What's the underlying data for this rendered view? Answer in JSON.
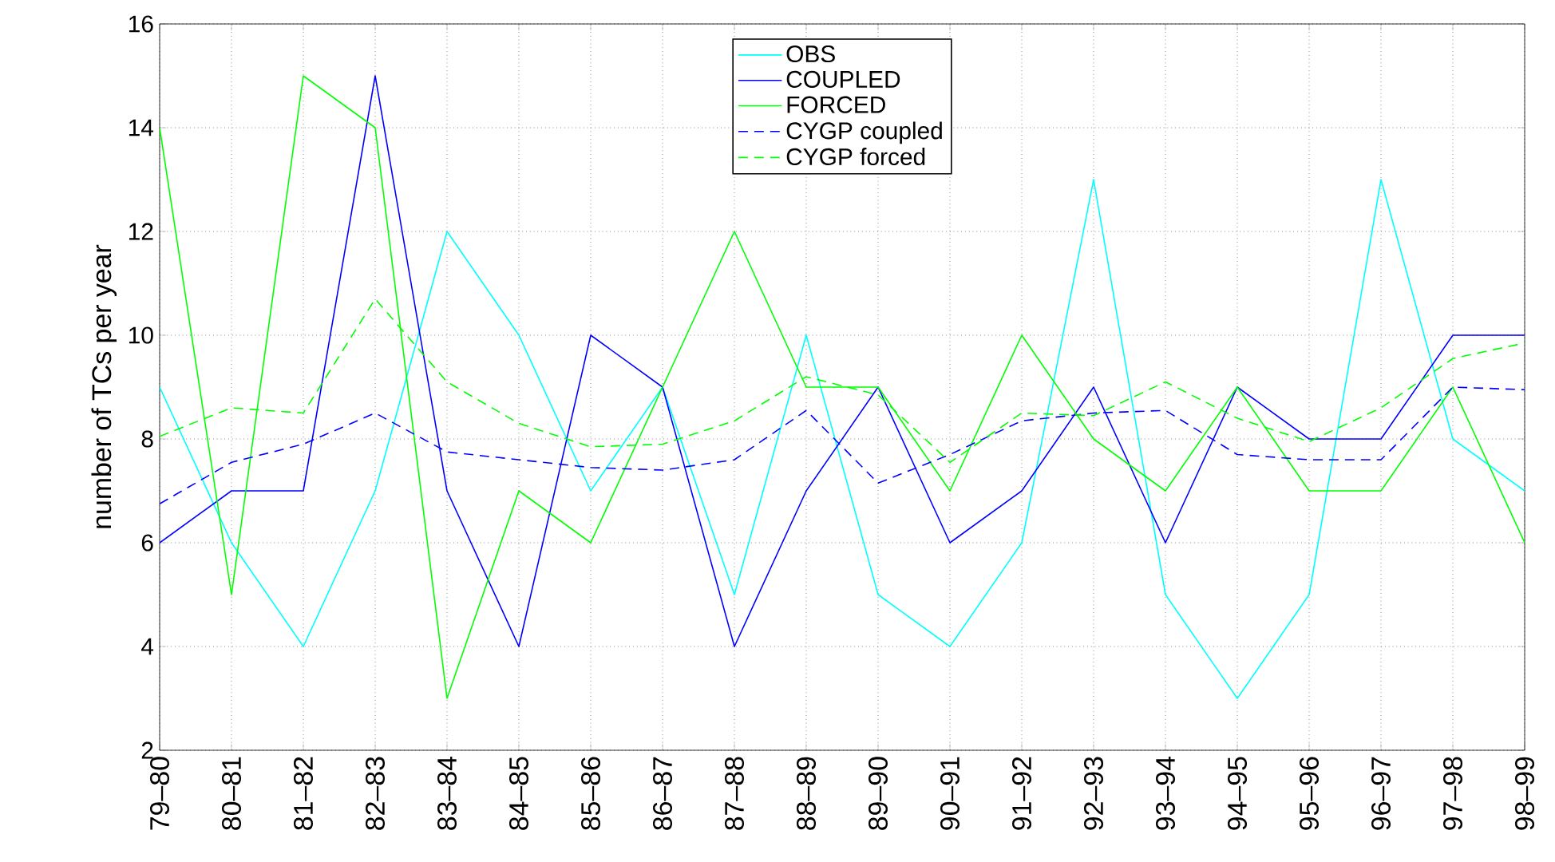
{
  "chart_data": {
    "type": "line",
    "ylabel": "number of TCs per year",
    "categories": [
      "79–80",
      "80–81",
      "81–82",
      "82–83",
      "83–84",
      "84–85",
      "85–86",
      "86–87",
      "87–88",
      "88–89",
      "89–90",
      "90–91",
      "91–92",
      "92–93",
      "93–94",
      "94–95",
      "95–96",
      "96–97",
      "97–98",
      "98–99"
    ],
    "series": [
      {
        "name": "OBS",
        "color": "#00ffff",
        "line_style": "solid",
        "values": [
          9,
          6,
          4,
          7,
          12,
          10,
          7,
          9,
          5,
          10,
          5,
          4,
          6,
          13,
          5,
          3,
          5,
          13,
          8,
          7
        ]
      },
      {
        "name": "COUPLED",
        "color": "#0000ff",
        "line_style": "solid",
        "values": [
          6,
          7,
          7,
          15,
          7,
          4,
          10,
          9,
          4,
          7,
          9,
          6,
          7,
          9,
          6,
          9,
          8,
          8,
          10,
          10
        ]
      },
      {
        "name": "FORCED",
        "color": "#00ff00",
        "line_style": "solid",
        "values": [
          14,
          5,
          15,
          14,
          3,
          7,
          6,
          9,
          12,
          9,
          9,
          7,
          10,
          8,
          7,
          9,
          7,
          7,
          9,
          6
        ]
      },
      {
        "name": "CYGP coupled",
        "color": "#0000ff",
        "line_style": "dashed",
        "values": [
          6.75,
          7.55,
          7.9,
          8.5,
          7.75,
          7.6,
          7.45,
          7.4,
          7.6,
          8.55,
          7.15,
          7.7,
          8.35,
          8.5,
          8.55,
          7.7,
          7.6,
          7.6,
          9.0,
          8.95
        ]
      },
      {
        "name": "CYGP forced",
        "color": "#00ff00",
        "line_style": "dashed",
        "values": [
          8.05,
          8.6,
          8.5,
          10.7,
          9.1,
          8.3,
          7.85,
          7.9,
          8.35,
          9.2,
          8.85,
          7.55,
          8.5,
          8.45,
          9.1,
          8.4,
          7.95,
          8.6,
          9.55,
          9.85
        ]
      }
    ],
    "ylim": [
      2,
      16
    ],
    "yticks": [
      2,
      4,
      6,
      8,
      10,
      12,
      14,
      16
    ],
    "grid": true,
    "legend": "top",
    "marker": "none"
  }
}
